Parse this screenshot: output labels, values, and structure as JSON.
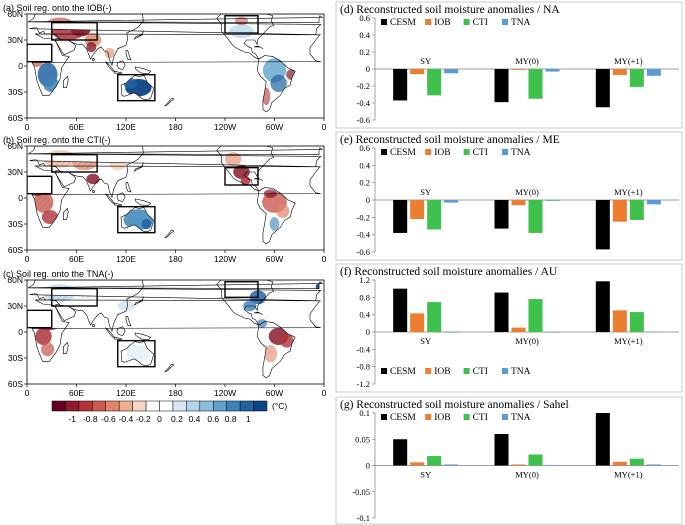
{
  "maps": {
    "panels": [
      {
        "title": "(a) Soil reg. onto the IOB(-)"
      },
      {
        "title": "(b) Soil reg. onto the CTI(-)"
      },
      {
        "title": "(c) Soil reg. onto the TNA(-)"
      }
    ],
    "lat_labels": [
      "60N",
      "30N",
      "0",
      "30S",
      "60S"
    ],
    "lon_labels": [
      "0",
      "60E",
      "120E",
      "180",
      "120W",
      "60W",
      "0"
    ],
    "colorbar": {
      "ticks": [
        "-1",
        "-0.8",
        "-0.6",
        "-0.4",
        "-0.2",
        "0",
        "0.2",
        "0.4",
        "0.6",
        "0.8",
        "1"
      ],
      "unit": "(°C)",
      "colors": [
        "#67001f",
        "#8c1a2b",
        "#b2333a",
        "#cc5a4f",
        "#e08566",
        "#efb091",
        "#f7d5c0",
        "#ffffff",
        "#ffffff",
        "#d8e7f3",
        "#b2d3e8",
        "#8bbedc",
        "#5fa2cb",
        "#3a82b9",
        "#2163a3",
        "#0b4584"
      ]
    }
  },
  "chart_data": [
    {
      "type": "bar",
      "title": "(d) Reconstructed soil moisture anomalies / NA",
      "categories": [
        "SY",
        "MY(0)",
        "MY(+1)"
      ],
      "series": [
        {
          "name": "CESM",
          "color": "#000000",
          "values": [
            -0.37,
            -0.39,
            -0.45
          ]
        },
        {
          "name": "IOB",
          "color": "#ed7d31",
          "values": [
            -0.06,
            -0.01,
            -0.07
          ]
        },
        {
          "name": "CTI",
          "color": "#3ec24d",
          "values": [
            -0.31,
            -0.35,
            -0.21
          ]
        },
        {
          "name": "TNA",
          "color": "#5b9bd5",
          "values": [
            -0.05,
            -0.03,
            -0.08
          ]
        }
      ],
      "ylim": [
        -0.6,
        0.6
      ],
      "yticks": [
        "-0.6",
        "-0.4",
        "-0.2",
        "0",
        "0.2",
        "0.4",
        "0.6"
      ],
      "legend": "top"
    },
    {
      "type": "bar",
      "title": "(e) Reconstructed soil moisture anomalies / ME",
      "categories": [
        "SY",
        "MY(0)",
        "MY(+1)"
      ],
      "series": [
        {
          "name": "CESM",
          "color": "#000000",
          "values": [
            -0.38,
            -0.33,
            -0.57
          ]
        },
        {
          "name": "IOB",
          "color": "#ed7d31",
          "values": [
            -0.22,
            -0.06,
            -0.25
          ]
        },
        {
          "name": "CTI",
          "color": "#3ec24d",
          "values": [
            -0.34,
            -0.38,
            -0.23
          ]
        },
        {
          "name": "TNA",
          "color": "#5b9bd5",
          "values": [
            -0.03,
            -0.01,
            -0.05
          ]
        }
      ],
      "ylim": [
        -0.6,
        0.6
      ],
      "yticks": [
        "-0.6",
        "-0.4",
        "-0.2",
        "0",
        "0.2",
        "0.4",
        "0.6"
      ],
      "legend": "top"
    },
    {
      "type": "bar",
      "title": "(f) Reconstructed soil moisture anomalies / AU",
      "categories": [
        "SY",
        "MY(0)",
        "MY(+1)"
      ],
      "series": [
        {
          "name": "CESM",
          "color": "#000000",
          "values": [
            1.0,
            0.91,
            1.17
          ]
        },
        {
          "name": "IOB",
          "color": "#ed7d31",
          "values": [
            0.43,
            0.1,
            0.5
          ]
        },
        {
          "name": "CTI",
          "color": "#3ec24d",
          "values": [
            0.69,
            0.76,
            0.46
          ]
        },
        {
          "name": "TNA",
          "color": "#5b9bd5",
          "values": [
            0.0,
            0.0,
            0.01
          ]
        }
      ],
      "ylim": [
        -1.2,
        1.2
      ],
      "yticks": [
        "-1.2",
        "-0.8",
        "-0.4",
        "0",
        "0.4",
        "0.8",
        "1.2"
      ],
      "legend": "bottom"
    },
    {
      "type": "bar",
      "title": "(g) Reconstructed soil moisture anomalies / Sahel",
      "categories": [
        "SY",
        "MY(0)",
        "MY(+1)"
      ],
      "series": [
        {
          "name": "CESM",
          "color": "#000000",
          "values": [
            0.05,
            0.06,
            0.1
          ]
        },
        {
          "name": "IOB",
          "color": "#ed7d31",
          "values": [
            0.006,
            0.002,
            0.007
          ]
        },
        {
          "name": "CTI",
          "color": "#3ec24d",
          "values": [
            0.018,
            0.021,
            0.013
          ]
        },
        {
          "name": "TNA",
          "color": "#5b9bd5",
          "values": [
            0.002,
            0.001,
            0.002
          ]
        }
      ],
      "ylim": [
        -0.1,
        0.1
      ],
      "yticks": [
        "-0.1",
        "-0.05",
        "0",
        "0.05",
        "0.1"
      ],
      "legend": "top"
    }
  ]
}
